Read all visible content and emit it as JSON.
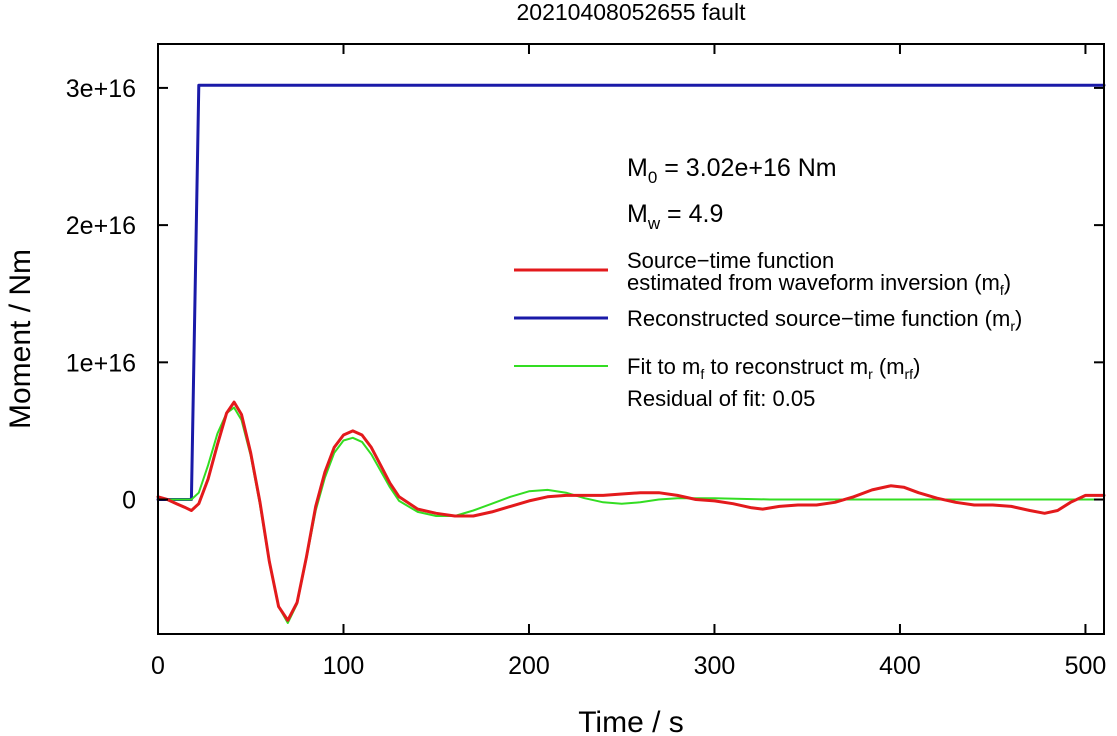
{
  "chart_data": {
    "type": "line",
    "title": "20210408052655 fault",
    "xlabel": "Time / s",
    "ylabel": "Moment / Nm",
    "xlim": [
      0,
      510
    ],
    "ylim": [
      -9800000000000000.0,
      3.32e+16
    ],
    "xticks": [
      0,
      100,
      200,
      300,
      400,
      500
    ],
    "xtick_labels": [
      "0",
      "100",
      "200",
      "300",
      "400",
      "500"
    ],
    "yticks": [
      0,
      1e+16,
      2e+16,
      3e+16
    ],
    "ytick_labels": [
      "0",
      "1e+16",
      "2e+16",
      "3e+16"
    ],
    "grid": false,
    "legend_position": "right",
    "annotations": {
      "m0_prefix": "M",
      "m0_sub": "0",
      "m0_value": " = 3.02e+16 Nm",
      "mw_prefix": "M",
      "mw_sub": "w",
      "mw_value": " = 4.9",
      "residual": "Residual of fit: 0.05"
    },
    "series": [
      {
        "id": "mf",
        "color": "#e31a1c",
        "legend_line1": "Source−time function",
        "legend_line2_prefix": "estimated from waveform inversion (m",
        "legend_line2_sub": "f",
        "legend_line2_suffix": ")",
        "points": [
          [
            0,
            200000000000000.0
          ],
          [
            5,
            0
          ],
          [
            10,
            -300000000000000.0
          ],
          [
            15,
            -600000000000000.0
          ],
          [
            18,
            -800000000000000.0
          ],
          [
            22,
            -300000000000000.0
          ],
          [
            27,
            1500000000000000.0
          ],
          [
            32,
            4000000000000000.0
          ],
          [
            37,
            6300000000000000.0
          ],
          [
            41,
            7100000000000000.0
          ],
          [
            45,
            6200000000000000.0
          ],
          [
            50,
            3400000000000000.0
          ],
          [
            55,
            -200000000000000.0
          ],
          [
            60,
            -4500000000000000.0
          ],
          [
            65,
            -7800000000000000.0
          ],
          [
            70,
            -8800000000000000.0
          ],
          [
            75,
            -7500000000000000.0
          ],
          [
            80,
            -4200000000000000.0
          ],
          [
            85,
            -500000000000000.0
          ],
          [
            90,
            2000000000000000.0
          ],
          [
            95,
            3800000000000000.0
          ],
          [
            100,
            4700000000000000.0
          ],
          [
            105,
            5000000000000000.0
          ],
          [
            110,
            4700000000000000.0
          ],
          [
            115,
            3800000000000000.0
          ],
          [
            120,
            2500000000000000.0
          ],
          [
            125,
            1200000000000000.0
          ],
          [
            130,
            200000000000000.0
          ],
          [
            140,
            -700000000000000.0
          ],
          [
            150,
            -1000000000000000.0
          ],
          [
            160,
            -1200000000000000.0
          ],
          [
            170,
            -1200000000000000.0
          ],
          [
            180,
            -900000000000000.0
          ],
          [
            190,
            -500000000000000.0
          ],
          [
            200,
            -100000000000000.0
          ],
          [
            210,
            200000000000000.0
          ],
          [
            220,
            300000000000000.0
          ],
          [
            240,
            300000000000000.0
          ],
          [
            250,
            400000000000000.0
          ],
          [
            260,
            500000000000000.0
          ],
          [
            270,
            500000000000000.0
          ],
          [
            280,
            300000000000000.0
          ],
          [
            290,
            0
          ],
          [
            300,
            -100000000000000.0
          ],
          [
            310,
            -300000000000000.0
          ],
          [
            320,
            -600000000000000.0
          ],
          [
            326,
            -700000000000000.0
          ],
          [
            335,
            -500000000000000.0
          ],
          [
            345,
            -400000000000000.0
          ],
          [
            355,
            -400000000000000.0
          ],
          [
            365,
            -200000000000000.0
          ],
          [
            375,
            200000000000000.0
          ],
          [
            385,
            700000000000000.0
          ],
          [
            395,
            1000000000000000.0
          ],
          [
            402,
            900000000000000.0
          ],
          [
            410,
            500000000000000.0
          ],
          [
            420,
            100000000000000.0
          ],
          [
            430,
            -200000000000000.0
          ],
          [
            440,
            -400000000000000.0
          ],
          [
            450,
            -400000000000000.0
          ],
          [
            460,
            -500000000000000.0
          ],
          [
            470,
            -800000000000000.0
          ],
          [
            478,
            -1000000000000000.0
          ],
          [
            485,
            -800000000000000.0
          ],
          [
            492,
            -200000000000000.0
          ],
          [
            500,
            300000000000000.0
          ],
          [
            510,
            300000000000000.0
          ]
        ]
      },
      {
        "id": "mr",
        "color": "#1a1aa8",
        "legend_prefix": "Reconstructed source−time function (m",
        "legend_sub": "r",
        "legend_suffix": ")",
        "points": [
          [
            0,
            0
          ],
          [
            18,
            0
          ],
          [
            22,
            3.02e+16
          ],
          [
            510,
            3.02e+16
          ]
        ]
      },
      {
        "id": "mrf",
        "color": "#33dd22",
        "legend_p1": "Fit to m",
        "legend_s1": "f",
        "legend_p2": " to reconstruct m",
        "legend_s2": "r",
        "legend_p3": " (m",
        "legend_s3": "rf",
        "legend_p4": ")",
        "points": [
          [
            0,
            0
          ],
          [
            18,
            0
          ],
          [
            22,
            500000000000000.0
          ],
          [
            27,
            2500000000000000.0
          ],
          [
            32,
            4800000000000000.0
          ],
          [
            37,
            6300000000000000.0
          ],
          [
            41,
            6700000000000000.0
          ],
          [
            45,
            5800000000000000.0
          ],
          [
            50,
            3200000000000000.0
          ],
          [
            55,
            -400000000000000.0
          ],
          [
            60,
            -4600000000000000.0
          ],
          [
            65,
            -7800000000000000.0
          ],
          [
            70,
            -9000000000000000.0
          ],
          [
            75,
            -7600000000000000.0
          ],
          [
            80,
            -4300000000000000.0
          ],
          [
            85,
            -800000000000000.0
          ],
          [
            90,
            1600000000000000.0
          ],
          [
            95,
            3400000000000000.0
          ],
          [
            100,
            4300000000000000.0
          ],
          [
            105,
            4500000000000000.0
          ],
          [
            110,
            4200000000000000.0
          ],
          [
            115,
            3300000000000000.0
          ],
          [
            120,
            2100000000000000.0
          ],
          [
            125,
            900000000000000.0
          ],
          [
            130,
            -100000000000000.0
          ],
          [
            140,
            -900000000000000.0
          ],
          [
            150,
            -1200000000000000.0
          ],
          [
            160,
            -1200000000000000.0
          ],
          [
            170,
            -800000000000000.0
          ],
          [
            180,
            -300000000000000.0
          ],
          [
            190,
            200000000000000.0
          ],
          [
            200,
            600000000000000.0
          ],
          [
            210,
            700000000000000.0
          ],
          [
            220,
            500000000000000.0
          ],
          [
            230,
            100000000000000.0
          ],
          [
            240,
            -200000000000000.0
          ],
          [
            250,
            -300000000000000.0
          ],
          [
            260,
            -200000000000000.0
          ],
          [
            270,
            0
          ],
          [
            280,
            100000000000000.0
          ],
          [
            300,
            100000000000000.0
          ],
          [
            330,
            0
          ],
          [
            510,
            0
          ]
        ]
      }
    ]
  }
}
